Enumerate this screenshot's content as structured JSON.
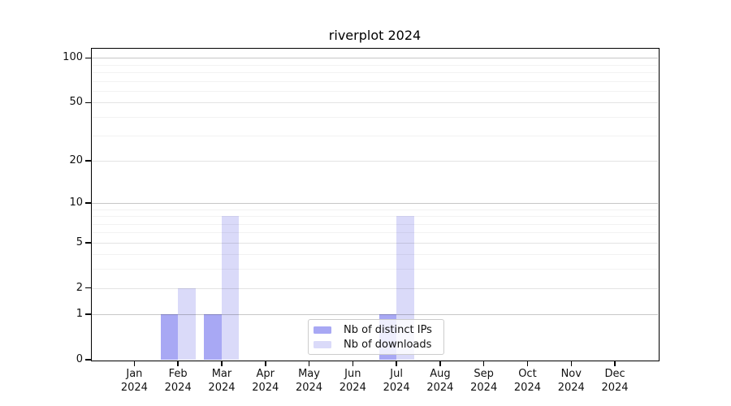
{
  "chart_data": {
    "type": "bar",
    "title": "riverplot 2024",
    "categories": [
      "Jan",
      "Feb",
      "Mar",
      "Apr",
      "May",
      "Jun",
      "Jul",
      "Aug",
      "Sep",
      "Oct",
      "Nov",
      "Dec"
    ],
    "category_year": "2024",
    "series": [
      {
        "name": "Nb of distinct IPs",
        "color": "#a8a8f4",
        "values": [
          0,
          1,
          1,
          0,
          0,
          0,
          1,
          0,
          0,
          0,
          0,
          0
        ]
      },
      {
        "name": "Nb of downloads",
        "color": "#dadaf9",
        "values": [
          0,
          2,
          8,
          0,
          0,
          0,
          8,
          0,
          0,
          0,
          0,
          0
        ]
      }
    ],
    "xlabel": "",
    "ylabel": "",
    "yscale": "symlog ln(1+v)",
    "ylim": [
      0,
      117
    ],
    "y_major_ticks": [
      0,
      1,
      2,
      5,
      10,
      20,
      50,
      100
    ],
    "y_strong_gridlines": [
      1,
      10,
      100
    ],
    "y_minor_ticks": [
      3,
      4,
      6,
      7,
      8,
      9,
      30,
      40,
      60,
      70,
      80,
      90
    ],
    "grid": "horizontal",
    "legend_position": "inset-bottom-center"
  },
  "colors": {
    "bar_distinct_ips": "#a8a8f4",
    "bar_downloads": "#dadaf9",
    "axis": "#000000",
    "text": "#111111",
    "legend_border": "#cccccc"
  }
}
